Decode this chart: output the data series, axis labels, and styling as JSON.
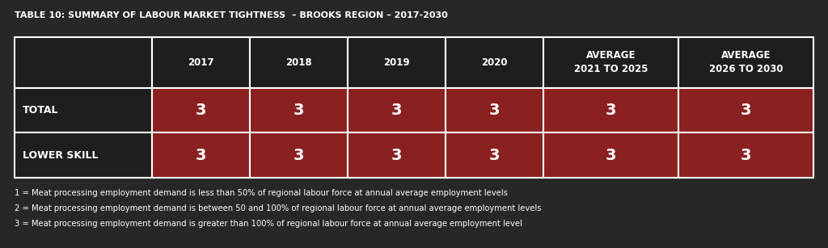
{
  "title": "TABLE 10: SUMMARY OF LABOUR MARKET TIGHTNESS  – BROOKS REGION – 2017-2030",
  "background_color": "#272727",
  "table_border_color": "#ffffff",
  "header_bg": "#1e1e1e",
  "header_text_color": "#ffffff",
  "row_label_bg": "#1e1e1e",
  "row_label_text_color": "#ffffff",
  "cell_bg": "#8b2020",
  "cell_text_color": "#ffffff",
  "col_headers": [
    "2017",
    "2018",
    "2019",
    "2020",
    "AVERAGE\n2021 TO 2025",
    "AVERAGE\n2026 TO 2030"
  ],
  "row_labels": [
    "TOTAL",
    "LOWER SKILL"
  ],
  "data": [
    [
      "3",
      "3",
      "3",
      "3",
      "3",
      "3"
    ],
    [
      "3",
      "3",
      "3",
      "3",
      "3",
      "3"
    ]
  ],
  "footnotes": [
    "1 = Meat processing employment demand is less than 50% of regional labour force at annual average employment levels",
    "2 = Meat processing employment demand is between 50 and 100% of regional labour force at annual average employment levels",
    "3 = Meat processing employment demand is greater than 100% of regional labour force at annual average employment level"
  ],
  "title_fontsize": 8.0,
  "header_fontsize": 8.5,
  "cell_fontsize": 14,
  "row_label_fontsize": 9.0,
  "footnote_fontsize": 7.2
}
